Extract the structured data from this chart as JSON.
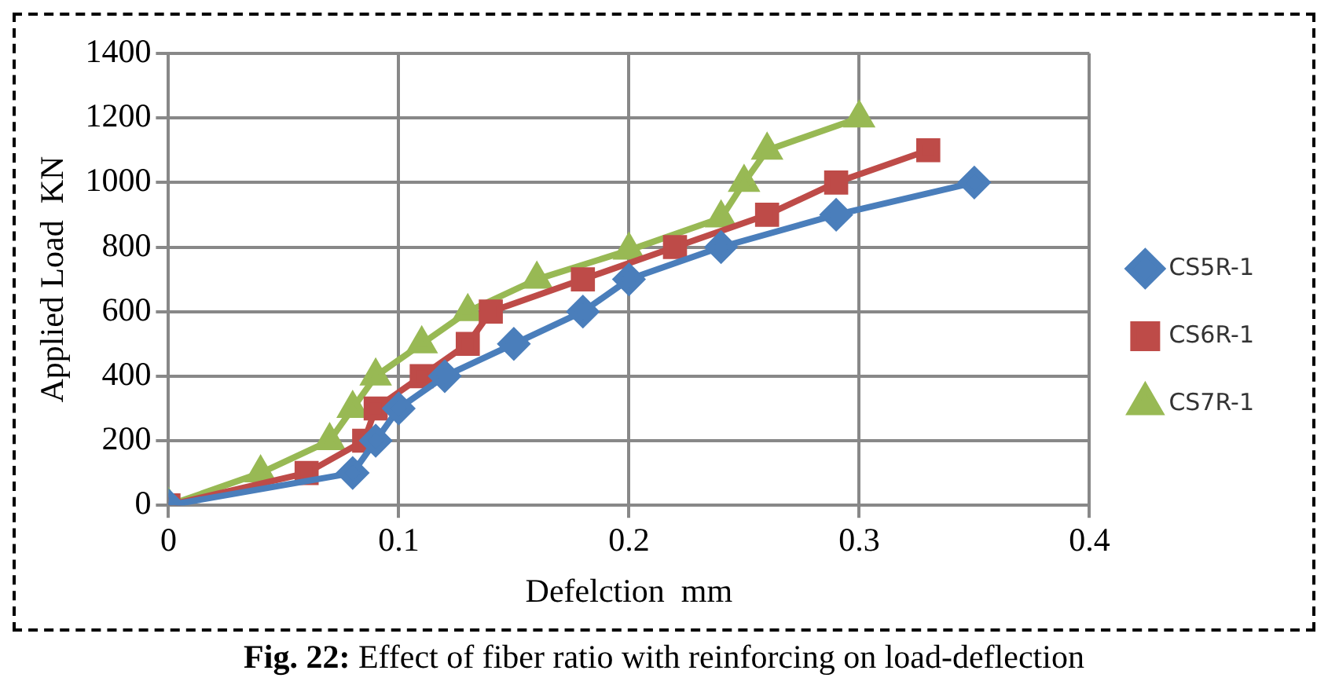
{
  "chart_data": {
    "type": "line",
    "xlabel": "Defelction  mm",
    "ylabel": "Applied Load  KN",
    "xlim": [
      0,
      0.4
    ],
    "xticks": [
      0,
      0.1,
      0.2,
      0.3,
      0.4
    ],
    "ylim": [
      0,
      1400
    ],
    "yticks": [
      0,
      200,
      400,
      600,
      800,
      1000,
      1200,
      1400
    ],
    "grid": true,
    "legend": "right",
    "annotations": [
      "Fig. 22: Effect of fiber ratio with reinforcing on load-deflection"
    ],
    "series": [
      {
        "name": "CS5R-1",
        "color": "#4a7ebb",
        "marker": "diamond",
        "x": [
          0,
          0.08,
          0.09,
          0.1,
          0.12,
          0.15,
          0.18,
          0.2,
          0.24,
          0.29,
          0.35
        ],
        "values": [
          0,
          100,
          200,
          300,
          400,
          500,
          600,
          700,
          800,
          900,
          1000
        ]
      },
      {
        "name": "CS6R-1",
        "color": "#be4b48",
        "marker": "square",
        "x": [
          0,
          0.06,
          0.085,
          0.09,
          0.11,
          0.13,
          0.14,
          0.18,
          0.22,
          0.26,
          0.29,
          0.33
        ],
        "values": [
          0,
          100,
          200,
          300,
          400,
          500,
          600,
          700,
          800,
          900,
          1000,
          1100
        ]
      },
      {
        "name": "CS7R-1",
        "color": "#98b954",
        "marker": "triangle",
        "x": [
          0,
          0.04,
          0.07,
          0.08,
          0.09,
          0.11,
          0.13,
          0.16,
          0.2,
          0.24,
          0.25,
          0.26,
          0.3
        ],
        "values": [
          0,
          100,
          200,
          300,
          400,
          500,
          600,
          700,
          790,
          890,
          1000,
          1100,
          1200
        ]
      }
    ]
  }
}
